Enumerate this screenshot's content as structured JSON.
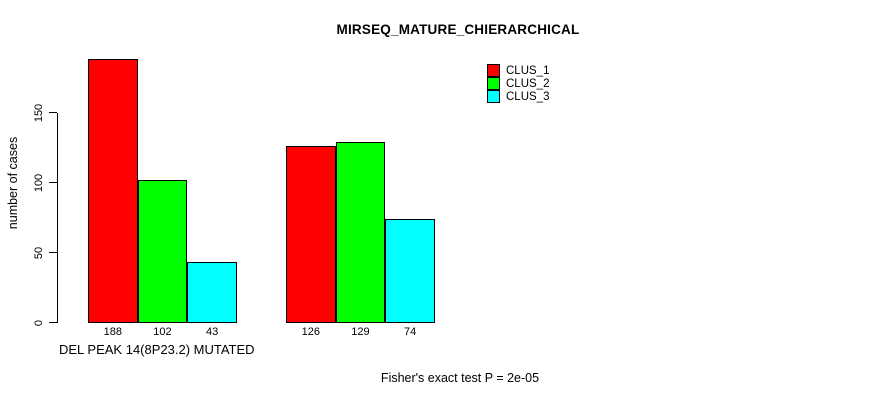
{
  "chart_data": {
    "type": "bar",
    "title": "MIRSEQ_MATURE_CHIERARCHICAL",
    "ylabel": "number of cases",
    "categories": [
      "DEL PEAK 14(8P23.2) MUTATED",
      ""
    ],
    "yticks": [
      0,
      50,
      100,
      150
    ],
    "ylim": [
      0,
      195
    ],
    "grid": false,
    "legend_position": "top-right",
    "series": [
      {
        "name": "CLUS_1",
        "color": "#ff0000",
        "values": [
          188,
          126
        ]
      },
      {
        "name": "CLUS_2",
        "color": "#00ff00",
        "values": [
          102,
          129
        ]
      },
      {
        "name": "CLUS_3",
        "color": "#00ffff",
        "values": [
          43,
          74
        ]
      }
    ],
    "bar_value_labels_shown": true,
    "annotation": "Fisher's exact test P = 2e-05",
    "colors": {
      "axis": "#000000",
      "text": "#000000",
      "background": "#ffffff"
    }
  }
}
